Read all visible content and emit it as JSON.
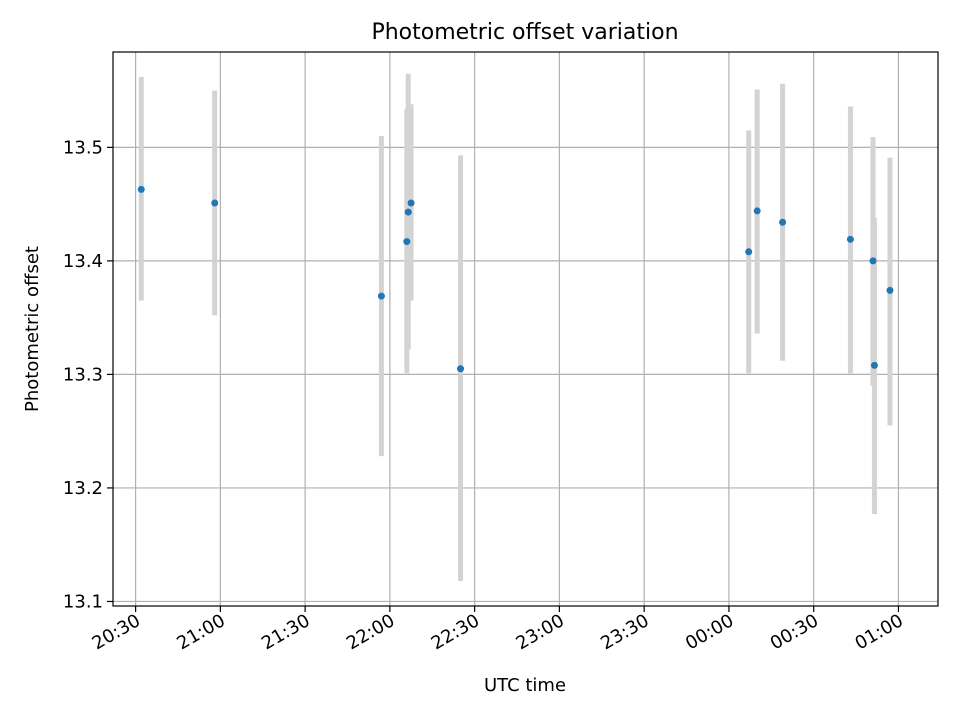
{
  "chart_data": {
    "type": "scatter",
    "title": "Photometric offset variation",
    "xlabel": "UTC time",
    "ylabel": "Photometric offset",
    "x_unit": "minutes after 20:00 UTC",
    "xlim": [
      22,
      314
    ],
    "ylim": [
      13.096,
      13.584
    ],
    "grid": true,
    "x_ticks": [
      {
        "value": 30,
        "label": "20:30"
      },
      {
        "value": 60,
        "label": "21:00"
      },
      {
        "value": 90,
        "label": "21:30"
      },
      {
        "value": 120,
        "label": "22:00"
      },
      {
        "value": 150,
        "label": "22:30"
      },
      {
        "value": 180,
        "label": "23:00"
      },
      {
        "value": 210,
        "label": "23:30"
      },
      {
        "value": 240,
        "label": "00:00"
      },
      {
        "value": 270,
        "label": "00:30"
      },
      {
        "value": 300,
        "label": "01:00"
      }
    ],
    "y_ticks": [
      {
        "value": 13.1,
        "label": "13.1"
      },
      {
        "value": 13.2,
        "label": "13.2"
      },
      {
        "value": 13.3,
        "label": "13.3"
      },
      {
        "value": 13.4,
        "label": "13.4"
      },
      {
        "value": 13.5,
        "label": "13.5"
      }
    ],
    "points": [
      {
        "x": 32,
        "y": 13.463,
        "ylow": 13.365,
        "yhigh": 13.562
      },
      {
        "x": 58,
        "y": 13.451,
        "ylow": 13.352,
        "yhigh": 13.55
      },
      {
        "x": 117,
        "y": 13.369,
        "ylow": 13.228,
        "yhigh": 13.51
      },
      {
        "x": 126,
        "y": 13.417,
        "ylow": 13.301,
        "yhigh": 13.534
      },
      {
        "x": 126.5,
        "y": 13.443,
        "ylow": 13.322,
        "yhigh": 13.565
      },
      {
        "x": 127.5,
        "y": 13.451,
        "ylow": 13.365,
        "yhigh": 13.538
      },
      {
        "x": 145,
        "y": 13.305,
        "ylow": 13.118,
        "yhigh": 13.493
      },
      {
        "x": 247,
        "y": 13.408,
        "ylow": 13.301,
        "yhigh": 13.515
      },
      {
        "x": 250,
        "y": 13.444,
        "ylow": 13.336,
        "yhigh": 13.551
      },
      {
        "x": 259,
        "y": 13.434,
        "ylow": 13.312,
        "yhigh": 13.556
      },
      {
        "x": 283,
        "y": 13.419,
        "ylow": 13.301,
        "yhigh": 13.536
      },
      {
        "x": 291,
        "y": 13.4,
        "ylow": 13.29,
        "yhigh": 13.509
      },
      {
        "x": 291.5,
        "y": 13.308,
        "ylow": 13.177,
        "yhigh": 13.438
      },
      {
        "x": 297,
        "y": 13.374,
        "ylow": 13.255,
        "yhigh": 13.491
      }
    ],
    "colors": {
      "point": "#1f77b4",
      "error_bar": "#d3d3d3",
      "grid": "#b0b0b0",
      "axes": "#000000"
    }
  }
}
